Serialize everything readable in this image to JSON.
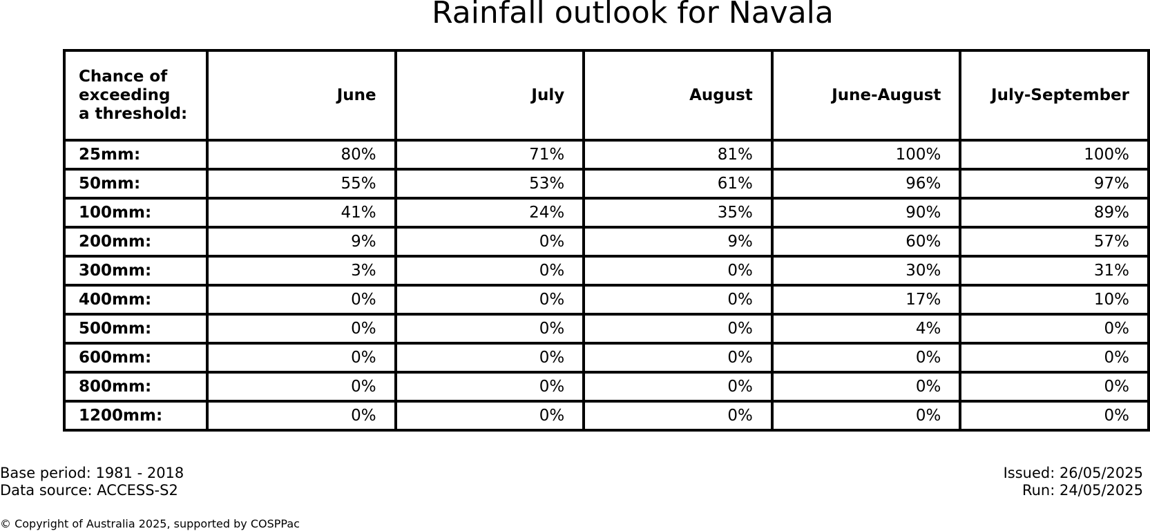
{
  "chart_data": {
    "type": "table",
    "title": "Rainfall outlook for Navala",
    "corner_label": "Chance of\nexceeding\na threshold:",
    "columns": [
      "June",
      "July",
      "August",
      "June-August",
      "July-September"
    ],
    "rows": [
      {
        "threshold": "25mm:",
        "values": [
          "80%",
          "71%",
          "81%",
          "100%",
          "100%"
        ]
      },
      {
        "threshold": "50mm:",
        "values": [
          "55%",
          "53%",
          "61%",
          "96%",
          "97%"
        ]
      },
      {
        "threshold": "100mm:",
        "values": [
          "41%",
          "24%",
          "35%",
          "90%",
          "89%"
        ]
      },
      {
        "threshold": "200mm:",
        "values": [
          "9%",
          "0%",
          "9%",
          "60%",
          "57%"
        ]
      },
      {
        "threshold": "300mm:",
        "values": [
          "3%",
          "0%",
          "0%",
          "30%",
          "31%"
        ]
      },
      {
        "threshold": "400mm:",
        "values": [
          "0%",
          "0%",
          "0%",
          "17%",
          "10%"
        ]
      },
      {
        "threshold": "500mm:",
        "values": [
          "0%",
          "0%",
          "0%",
          "4%",
          "0%"
        ]
      },
      {
        "threshold": "600mm:",
        "values": [
          "0%",
          "0%",
          "0%",
          "0%",
          "0%"
        ]
      },
      {
        "threshold": "800mm:",
        "values": [
          "0%",
          "0%",
          "0%",
          "0%",
          "0%"
        ]
      },
      {
        "threshold": "1200mm:",
        "values": [
          "0%",
          "0%",
          "0%",
          "0%",
          "0%"
        ]
      }
    ]
  },
  "footer": {
    "base_period": "Base period: 1981 - 2018",
    "data_source": "Data source: ACCESS-S2",
    "issued": "Issued: 26/05/2025",
    "run": "Run: 24/05/2025",
    "copyright": "© Copyright of Australia 2025, supported by COSPPac"
  }
}
